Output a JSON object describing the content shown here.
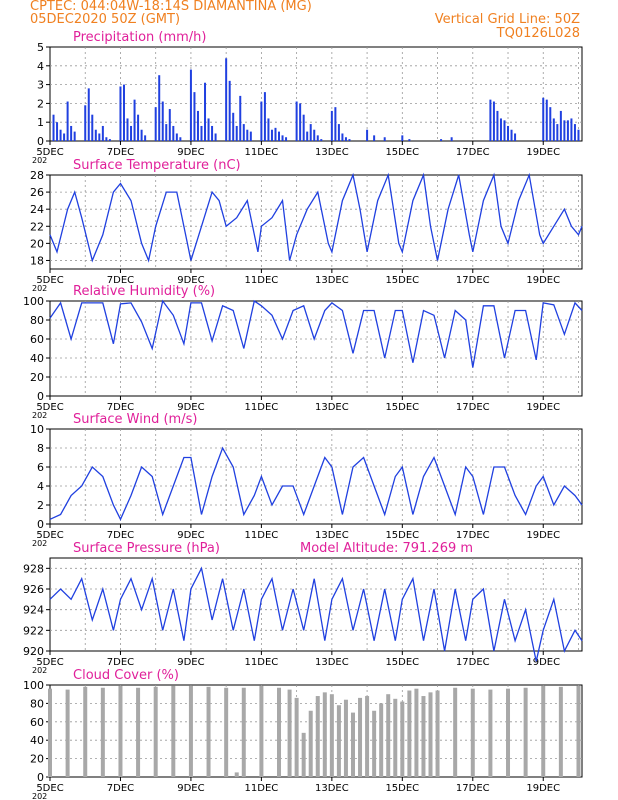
{
  "header": {
    "line1": "CPTEC:   044:04W-18:14S   DIAMANTINA (MG)",
    "line2": "05DEC2020 50Z (GMT)",
    "right1": "Vertical Grid Line: 50Z",
    "right2": "TQ0126L028"
  },
  "colors": {
    "header": "#f08020",
    "title": "#e0209a",
    "series": "#2040e0",
    "cloud": "#a8a8a8",
    "grid": "#999999"
  },
  "x_axis": {
    "start_day": 5,
    "end_day": 20.1,
    "tick_labels": [
      "5DEC",
      "7DEC",
      "9DEC",
      "11DEC",
      "13DEC",
      "15DEC",
      "17DEC",
      "19DEC"
    ],
    "tick_days": [
      5,
      7,
      9,
      11,
      13,
      15,
      17,
      19
    ],
    "year_stub": "202"
  },
  "chart_data": [
    {
      "type": "bar",
      "title": "Precipitation (mm/h)",
      "ylim": [
        0,
        5
      ],
      "yticks": [
        0,
        1,
        2,
        3,
        4,
        5
      ],
      "x": [
        5.1,
        5.2,
        5.3,
        5.4,
        5.5,
        5.6,
        5.7,
        6.0,
        6.1,
        6.2,
        6.3,
        6.4,
        6.5,
        6.6,
        6.7,
        7.0,
        7.1,
        7.2,
        7.3,
        7.4,
        7.5,
        7.6,
        7.7,
        8.0,
        8.1,
        8.2,
        8.3,
        8.4,
        8.5,
        8.6,
        8.7,
        9.0,
        9.1,
        9.2,
        9.3,
        9.4,
        9.5,
        9.6,
        9.7,
        10.0,
        10.1,
        10.2,
        10.3,
        10.4,
        10.5,
        10.6,
        10.7,
        11.0,
        11.1,
        11.2,
        11.3,
        11.4,
        11.5,
        11.6,
        11.7,
        12.0,
        12.1,
        12.2,
        12.3,
        12.4,
        12.5,
        12.6,
        12.7,
        13.0,
        13.1,
        13.2,
        13.3,
        13.4,
        13.5,
        14.0,
        14.2,
        14.5,
        15.0,
        15.2,
        16.1,
        16.4,
        17.5,
        17.6,
        17.7,
        17.8,
        17.9,
        18.0,
        18.1,
        18.2,
        19.0,
        19.1,
        19.2,
        19.3,
        19.4,
        19.5,
        19.6,
        19.7,
        19.8,
        19.9,
        20.0
      ],
      "values": [
        1.4,
        1.0,
        0.6,
        0.4,
        2.1,
        0.8,
        0.5,
        1.9,
        2.8,
        1.4,
        0.6,
        0.4,
        0.8,
        0.2,
        0.1,
        2.9,
        3.0,
        1.2,
        0.8,
        2.2,
        1.4,
        0.6,
        0.3,
        1.8,
        3.5,
        2.1,
        0.9,
        1.7,
        0.8,
        0.4,
        0.2,
        3.8,
        2.6,
        1.6,
        0.8,
        3.1,
        1.2,
        0.8,
        0.4,
        4.4,
        3.2,
        1.5,
        0.8,
        2.4,
        0.9,
        0.6,
        0.5,
        2.1,
        2.6,
        1.2,
        0.6,
        0.7,
        0.5,
        0.3,
        0.2,
        2.1,
        2.0,
        1.4,
        0.5,
        0.9,
        0.6,
        0.3,
        0.1,
        1.6,
        1.8,
        0.9,
        0.4,
        0.2,
        0.1,
        0.6,
        0.3,
        0.2,
        0.3,
        0.1,
        0.1,
        0.2,
        2.2,
        2.1,
        1.6,
        1.2,
        1.1,
        0.8,
        0.6,
        0.4,
        2.3,
        2.2,
        1.8,
        1.2,
        0.9,
        1.6,
        1.1,
        1.1,
        1.2,
        0.9,
        0.6
      ]
    },
    {
      "type": "line",
      "title": "Surface Temperature (nC)",
      "ylim": [
        17,
        28
      ],
      "yticks": [
        18,
        20,
        22,
        24,
        26,
        28
      ],
      "x": [
        5.0,
        5.2,
        5.5,
        5.7,
        5.9,
        6.2,
        6.5,
        6.8,
        7.0,
        7.3,
        7.6,
        7.8,
        8.0,
        8.3,
        8.6,
        8.9,
        9.0,
        9.3,
        9.6,
        9.8,
        10.0,
        10.3,
        10.6,
        10.9,
        11.0,
        11.3,
        11.6,
        11.8,
        12.0,
        12.3,
        12.6,
        12.9,
        13.0,
        13.3,
        13.6,
        13.8,
        14.0,
        14.3,
        14.6,
        14.9,
        15.0,
        15.3,
        15.6,
        15.8,
        16.0,
        16.3,
        16.6,
        16.9,
        17.0,
        17.3,
        17.6,
        17.8,
        18.0,
        18.3,
        18.6,
        18.9,
        19.0,
        19.3,
        19.6,
        19.8,
        20.0,
        20.1
      ],
      "values": [
        21,
        19,
        24,
        26,
        23,
        18,
        21,
        26,
        27,
        25,
        20,
        18,
        22,
        26,
        26,
        20,
        18,
        22,
        26,
        25,
        22,
        23,
        25,
        19,
        22,
        23,
        25,
        18,
        21,
        24,
        26,
        20,
        19,
        25,
        28,
        24,
        19,
        25,
        28,
        20,
        19,
        25,
        28,
        22,
        18,
        24,
        28,
        21,
        19,
        25,
        28,
        22,
        20,
        25,
        28,
        21,
        20,
        22,
        24,
        22,
        21,
        22
      ]
    },
    {
      "type": "line",
      "title": "Relative Humidity (%)",
      "ylim": [
        0,
        100
      ],
      "yticks": [
        0,
        20,
        40,
        60,
        80,
        100
      ],
      "x": [
        5.0,
        5.3,
        5.6,
        5.9,
        6.2,
        6.5,
        6.8,
        7.0,
        7.3,
        7.6,
        7.9,
        8.2,
        8.5,
        8.8,
        9.0,
        9.3,
        9.6,
        9.9,
        10.2,
        10.5,
        10.8,
        11.0,
        11.3,
        11.6,
        11.9,
        12.2,
        12.5,
        12.8,
        13.0,
        13.3,
        13.6,
        13.9,
        14.2,
        14.5,
        14.8,
        15.0,
        15.3,
        15.6,
        15.9,
        16.2,
        16.5,
        16.8,
        17.0,
        17.3,
        17.6,
        17.9,
        18.2,
        18.5,
        18.8,
        19.0,
        19.3,
        19.6,
        19.9,
        20.1
      ],
      "values": [
        82,
        98,
        60,
        98,
        98,
        98,
        55,
        97,
        98,
        78,
        50,
        100,
        85,
        55,
        98,
        98,
        58,
        95,
        90,
        50,
        100,
        95,
        85,
        60,
        90,
        95,
        60,
        90,
        98,
        90,
        45,
        90,
        90,
        40,
        90,
        90,
        35,
        90,
        85,
        40,
        90,
        80,
        30,
        95,
        95,
        40,
        90,
        90,
        38,
        98,
        96,
        65,
        98,
        90
      ]
    },
    {
      "type": "line",
      "title": "Surface Wind (m/s)",
      "ylim": [
        0,
        10
      ],
      "yticks": [
        0,
        2,
        4,
        6,
        8,
        10
      ],
      "x": [
        5.0,
        5.3,
        5.6,
        5.9,
        6.2,
        6.5,
        6.8,
        7.0,
        7.3,
        7.6,
        7.9,
        8.2,
        8.5,
        8.8,
        9.0,
        9.3,
        9.6,
        9.9,
        10.2,
        10.5,
        10.8,
        11.0,
        11.3,
        11.6,
        11.9,
        12.2,
        12.5,
        12.8,
        13.0,
        13.3,
        13.6,
        13.9,
        14.2,
        14.5,
        14.8,
        15.0,
        15.3,
        15.6,
        15.9,
        16.2,
        16.5,
        16.8,
        17.0,
        17.3,
        17.6,
        17.9,
        18.2,
        18.5,
        18.8,
        19.0,
        19.3,
        19.6,
        19.9,
        20.1
      ],
      "values": [
        0.5,
        1,
        3,
        4,
        6,
        5,
        2,
        0.5,
        3,
        6,
        5,
        1,
        4,
        7,
        7,
        1,
        5,
        8,
        6,
        1,
        3,
        5,
        2,
        4,
        4,
        1,
        4,
        7,
        6,
        1,
        6,
        7,
        4,
        1,
        5,
        6,
        1,
        5,
        7,
        4,
        1,
        6,
        5,
        1,
        6,
        6,
        3,
        1,
        4,
        5,
        2,
        4,
        3,
        2
      ]
    },
    {
      "type": "line",
      "title": "Surface Pressure (hPa)",
      "annotation": "Model Altitude: 791.269 m",
      "ylim": [
        920,
        929
      ],
      "yticks": [
        920,
        922,
        924,
        926,
        928
      ],
      "x": [
        5.0,
        5.3,
        5.6,
        5.9,
        6.2,
        6.5,
        6.8,
        7.0,
        7.3,
        7.6,
        7.9,
        8.2,
        8.5,
        8.8,
        9.0,
        9.3,
        9.6,
        9.9,
        10.2,
        10.5,
        10.8,
        11.0,
        11.3,
        11.6,
        11.9,
        12.2,
        12.5,
        12.8,
        13.0,
        13.3,
        13.6,
        13.9,
        14.2,
        14.5,
        14.8,
        15.0,
        15.3,
        15.6,
        15.9,
        16.2,
        16.5,
        16.8,
        17.0,
        17.3,
        17.6,
        17.9,
        18.2,
        18.5,
        18.8,
        19.0,
        19.3,
        19.6,
        19.9,
        20.1
      ],
      "values": [
        925,
        926,
        925,
        927,
        923,
        926,
        922,
        925,
        927,
        924,
        927,
        922,
        926,
        921,
        926,
        928,
        923,
        927,
        922,
        926,
        921,
        925,
        927,
        922,
        926,
        922,
        927,
        921,
        925,
        927,
        922,
        926,
        921,
        926,
        921,
        925,
        927,
        921,
        926,
        920,
        926,
        921,
        925,
        926,
        920,
        925,
        921,
        924,
        919,
        922,
        925,
        920,
        922,
        921
      ]
    },
    {
      "type": "bar",
      "title": "Cloud Cover (%)",
      "ylim": [
        0,
        100
      ],
      "yticks": [
        0,
        20,
        40,
        60,
        80,
        100
      ],
      "x": [
        5.0,
        5.5,
        6.0,
        6.5,
        7.0,
        7.5,
        8.0,
        8.5,
        9.0,
        9.5,
        10.0,
        10.3,
        10.5,
        11.0,
        11.5,
        11.8,
        12.0,
        12.2,
        12.4,
        12.6,
        12.8,
        13.0,
        13.2,
        13.4,
        13.6,
        13.8,
        14.0,
        14.2,
        14.4,
        14.6,
        14.8,
        15.0,
        15.2,
        15.4,
        15.6,
        15.8,
        16.0,
        16.5,
        17.0,
        17.5,
        18.0,
        18.5,
        19.0,
        19.5,
        20.0
      ],
      "values": [
        96,
        95,
        98,
        97,
        99,
        97,
        98,
        99,
        99,
        98,
        97,
        5,
        97,
        99,
        97,
        95,
        86,
        48,
        72,
        88,
        92,
        90,
        78,
        84,
        70,
        86,
        88,
        72,
        80,
        90,
        85,
        82,
        94,
        96,
        88,
        92,
        94,
        97,
        96,
        95,
        96,
        97,
        99,
        98,
        99
      ]
    }
  ]
}
